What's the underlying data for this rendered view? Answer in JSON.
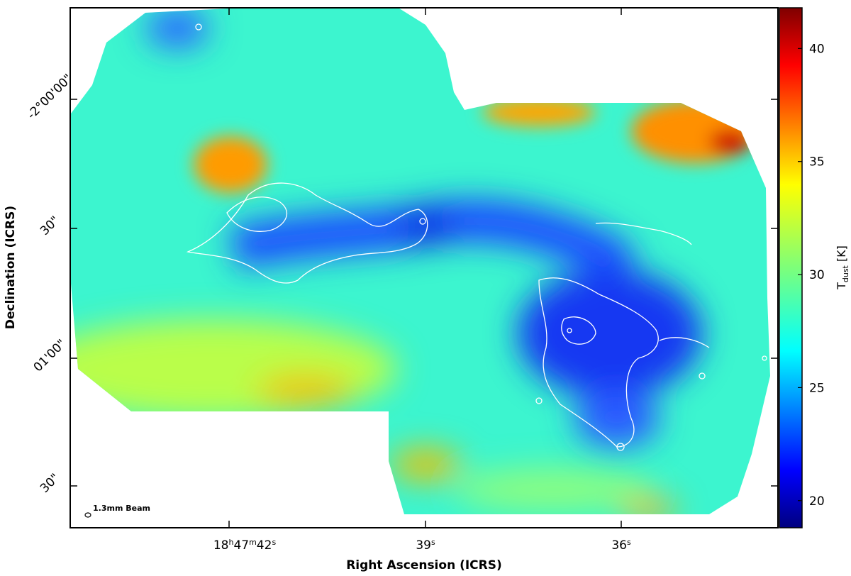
{
  "chart_data": {
    "type": "heatmap",
    "xlabel": "Right Ascension (ICRS)",
    "ylabel": "Declination (ICRS)",
    "x_ticks": [
      {
        "value": "18h47m42s",
        "hh": "18",
        "mm": "47",
        "ss": "42"
      },
      {
        "value": "39s",
        "ss": "39"
      },
      {
        "value": "36s",
        "ss": "36"
      }
    ],
    "y_ticks": [
      "-2°00'00\"",
      "30\"",
      "01'00\"",
      "30\""
    ],
    "colorbar": {
      "label": "T_dust [K]",
      "label_main": "T",
      "label_sub": "dust",
      "label_unit": " [K]",
      "ticks": [
        20,
        25,
        30,
        35,
        40
      ],
      "range": [
        18.8,
        41.8
      ],
      "colormap": "jet"
    },
    "hotspots": [
      {
        "name": "north-west warm region",
        "temperature": 34
      },
      {
        "name": "north-east warm region",
        "temperature": 38
      },
      {
        "name": "south warm patch",
        "temperature": 33
      }
    ],
    "cold_filaments": [
      {
        "name": "central filament",
        "temperature": 22
      },
      {
        "name": "south-east clump",
        "temperature": 21
      }
    ],
    "background_temperature": 26,
    "contour_color": "#ffffff",
    "beam_label": "1.3mm Beam"
  }
}
